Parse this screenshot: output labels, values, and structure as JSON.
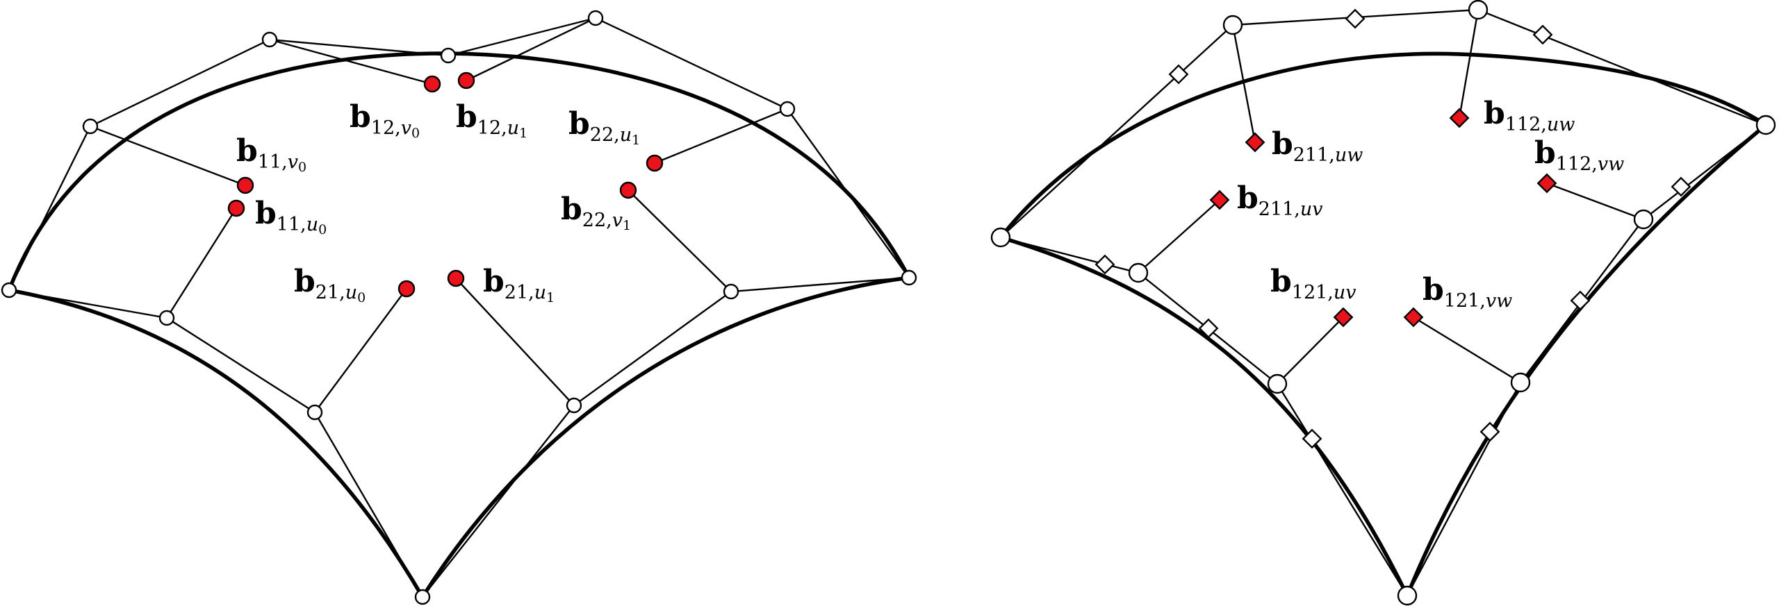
{
  "colors": {
    "stroke": "#000000",
    "open_point": "#ffffff",
    "inner_point": "#e8131b"
  },
  "left_panel": {
    "labels": [
      {
        "id": "b12v0",
        "base": "b",
        "sub": "12,",
        "var": "v",
        "idx": "0"
      },
      {
        "id": "b12u1",
        "base": "b",
        "sub": "12,",
        "var": "u",
        "idx": "1"
      },
      {
        "id": "b22u1",
        "base": "b",
        "sub": "22,",
        "var": "u",
        "idx": "1"
      },
      {
        "id": "b11v0",
        "base": "b",
        "sub": "11,",
        "var": "v",
        "idx": "0"
      },
      {
        "id": "b11u0",
        "base": "b",
        "sub": "11,",
        "var": "u",
        "idx": "0"
      },
      {
        "id": "b22v1",
        "base": "b",
        "sub": "22,",
        "var": "v",
        "idx": "1"
      },
      {
        "id": "b21u0",
        "base": "b",
        "sub": "21,",
        "var": "u",
        "idx": "0"
      },
      {
        "id": "b21u1",
        "base": "b",
        "sub": "21,",
        "var": "u",
        "idx": "1"
      }
    ]
  },
  "right_panel": {
    "labels": [
      {
        "id": "b112uw",
        "base": "b",
        "sub": "112,",
        "var": "uw"
      },
      {
        "id": "b211uw",
        "base": "b",
        "sub": "211,",
        "var": "uw"
      },
      {
        "id": "b112vw",
        "base": "b",
        "sub": "112,",
        "var": "vw"
      },
      {
        "id": "b211uv",
        "base": "b",
        "sub": "211,",
        "var": "uv"
      },
      {
        "id": "b121uv",
        "base": "b",
        "sub": "121,",
        "var": "uv"
      },
      {
        "id": "b121vw",
        "base": "b",
        "sub": "121,",
        "var": "vw"
      }
    ]
  }
}
